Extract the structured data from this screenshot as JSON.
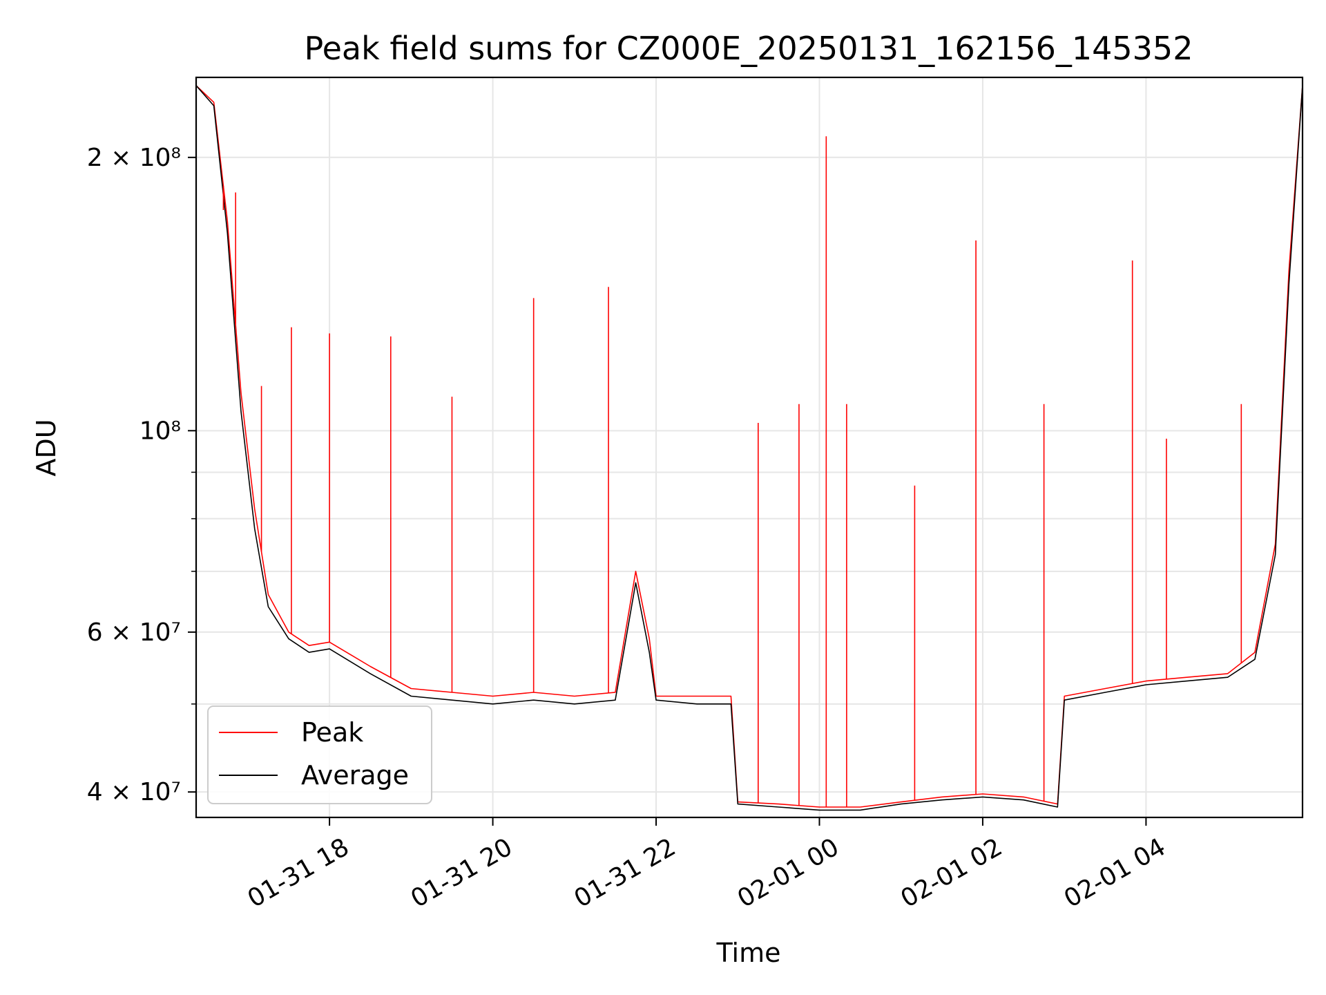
{
  "chart_data": {
    "type": "line",
    "title": "Peak field sums for CZ000E_20250131_162156_145352",
    "xlabel": "Time",
    "ylabel": "ADU",
    "yscale": "log",
    "grid": true,
    "legend_position": "lower-left",
    "xlim": [
      "2025-01-31 16:22",
      "2025-02-01 05:55"
    ],
    "ylim": [
      37500000,
      245000000
    ],
    "x_ticks": [
      {
        "t": "2025-01-31 18:00",
        "label": "01-31 18"
      },
      {
        "t": "2025-01-31 20:00",
        "label": "01-31 20"
      },
      {
        "t": "2025-01-31 22:00",
        "label": "01-31 22"
      },
      {
        "t": "2025-02-01 00:00",
        "label": "02-01 00"
      },
      {
        "t": "2025-02-01 02:00",
        "label": "02-01 02"
      },
      {
        "t": "2025-02-01 04:00",
        "label": "02-01 04"
      }
    ],
    "y_ticks": [
      {
        "value": 40000000,
        "label": "4 × 10⁷"
      },
      {
        "value": 60000000,
        "label": "6 × 10⁷"
      },
      {
        "value": 100000000,
        "label": "10⁸"
      },
      {
        "value": 200000000,
        "label": "2 × 10⁸"
      }
    ],
    "y_minor_ticks": [
      50000000,
      70000000,
      80000000,
      90000000
    ],
    "series": [
      {
        "name": "Peak",
        "color": "#ff0000",
        "x": [
          "2025-01-31 16:22",
          "2025-01-31 16:35",
          "2025-01-31 16:45",
          "2025-01-31 16:55",
          "2025-01-31 17:05",
          "2025-01-31 17:15",
          "2025-01-31 17:30",
          "2025-01-31 17:45",
          "2025-01-31 18:00",
          "2025-01-31 18:30",
          "2025-01-31 19:00",
          "2025-01-31 19:30",
          "2025-01-31 20:00",
          "2025-01-31 20:30",
          "2025-01-31 21:00",
          "2025-01-31 21:30",
          "2025-01-31 21:45",
          "2025-01-31 21:55",
          "2025-01-31 22:00",
          "2025-01-31 22:30",
          "2025-01-31 22:55",
          "2025-01-31 23:00",
          "2025-01-31 23:30",
          "2025-02-01 00:00",
          "2025-02-01 00:30",
          "2025-02-01 01:00",
          "2025-02-01 01:30",
          "2025-02-01 02:00",
          "2025-02-01 02:30",
          "2025-02-01 02:55",
          "2025-02-01 03:00",
          "2025-02-01 03:30",
          "2025-02-01 04:00",
          "2025-02-01 04:30",
          "2025-02-01 05:00",
          "2025-02-01 05:20",
          "2025-02-01 05:35",
          "2025-02-01 05:45",
          "2025-02-01 05:55"
        ],
        "values": [
          240000000,
          230000000,
          170000000,
          110000000,
          82000000,
          66000000,
          60000000,
          58000000,
          58500000,
          55000000,
          52000000,
          51500000,
          51000000,
          51500000,
          51000000,
          51500000,
          70000000,
          59000000,
          51000000,
          51000000,
          51000000,
          39000000,
          38800000,
          38500000,
          38500000,
          39000000,
          39500000,
          39800000,
          39500000,
          38800000,
          51000000,
          52000000,
          53000000,
          53500000,
          54000000,
          57000000,
          75000000,
          150000000,
          240000000
        ]
      },
      {
        "name": "Average",
        "color": "#000000",
        "x": [
          "2025-01-31 16:22",
          "2025-01-31 16:35",
          "2025-01-31 16:45",
          "2025-01-31 16:55",
          "2025-01-31 17:05",
          "2025-01-31 17:15",
          "2025-01-31 17:30",
          "2025-01-31 17:45",
          "2025-01-31 18:00",
          "2025-01-31 18:30",
          "2025-01-31 19:00",
          "2025-01-31 19:30",
          "2025-01-31 20:00",
          "2025-01-31 20:30",
          "2025-01-31 21:00",
          "2025-01-31 21:30",
          "2025-01-31 21:45",
          "2025-01-31 21:55",
          "2025-01-31 22:00",
          "2025-01-31 22:30",
          "2025-01-31 22:55",
          "2025-01-31 23:00",
          "2025-01-31 23:30",
          "2025-02-01 00:00",
          "2025-02-01 00:30",
          "2025-02-01 01:00",
          "2025-02-01 01:30",
          "2025-02-01 02:00",
          "2025-02-01 02:30",
          "2025-02-01 02:55",
          "2025-02-01 03:00",
          "2025-02-01 03:30",
          "2025-02-01 04:00",
          "2025-02-01 04:30",
          "2025-02-01 05:00",
          "2025-02-01 05:20",
          "2025-02-01 05:35",
          "2025-02-01 05:45",
          "2025-02-01 05:55"
        ],
        "values": [
          240000000,
          228000000,
          165000000,
          105000000,
          78000000,
          64000000,
          59000000,
          57000000,
          57500000,
          54000000,
          51000000,
          50500000,
          50000000,
          50500000,
          50000000,
          50500000,
          68000000,
          57000000,
          50500000,
          50000000,
          50000000,
          38800000,
          38500000,
          38200000,
          38200000,
          38800000,
          39200000,
          39500000,
          39200000,
          38500000,
          50500000,
          51500000,
          52500000,
          53000000,
          53500000,
          56000000,
          73000000,
          145000000,
          240000000
        ]
      }
    ],
    "spikes": [
      {
        "x": "2025-01-31 16:42",
        "peak": 175000000
      },
      {
        "x": "2025-01-31 16:51",
        "peak": 183000000
      },
      {
        "x": "2025-01-31 17:10",
        "peak": 112000000
      },
      {
        "x": "2025-01-31 17:32",
        "peak": 130000000
      },
      {
        "x": "2025-01-31 18:00",
        "peak": 128000000
      },
      {
        "x": "2025-01-31 18:45",
        "peak": 127000000
      },
      {
        "x": "2025-01-31 19:30",
        "peak": 109000000
      },
      {
        "x": "2025-01-31 20:30",
        "peak": 140000000
      },
      {
        "x": "2025-01-31 21:25",
        "peak": 144000000
      },
      {
        "x": "2025-01-31 23:15",
        "peak": 102000000
      },
      {
        "x": "2025-01-31 23:45",
        "peak": 107000000
      },
      {
        "x": "2025-02-01 00:05",
        "peak": 211000000
      },
      {
        "x": "2025-02-01 00:20",
        "peak": 107000000
      },
      {
        "x": "2025-02-01 01:10",
        "peak": 87000000
      },
      {
        "x": "2025-02-01 01:55",
        "peak": 162000000
      },
      {
        "x": "2025-02-01 02:45",
        "peak": 107000000
      },
      {
        "x": "2025-02-01 03:50",
        "peak": 154000000
      },
      {
        "x": "2025-02-01 04:15",
        "peak": 98000000
      },
      {
        "x": "2025-02-01 05:10",
        "peak": 107000000
      }
    ]
  }
}
